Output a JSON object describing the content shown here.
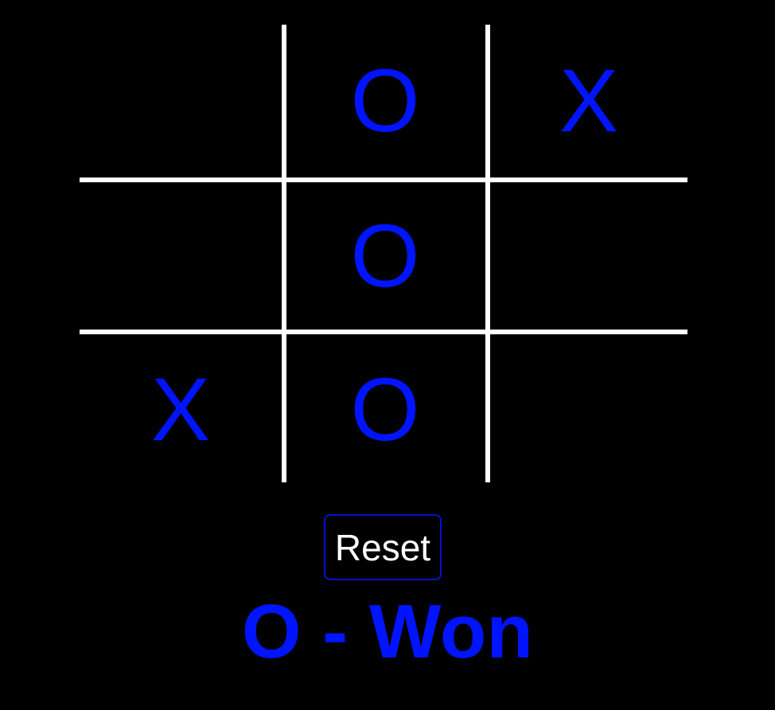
{
  "board": {
    "cells": [
      "",
      "O",
      "X",
      "",
      "O",
      "",
      "X",
      "O",
      ""
    ]
  },
  "controls": {
    "reset_label": "Reset"
  },
  "status": {
    "text": "O - Won"
  },
  "colors": {
    "mark": "#0014ff",
    "grid": "#ffffff",
    "background": "#000000",
    "button_border": "#0014cc"
  }
}
